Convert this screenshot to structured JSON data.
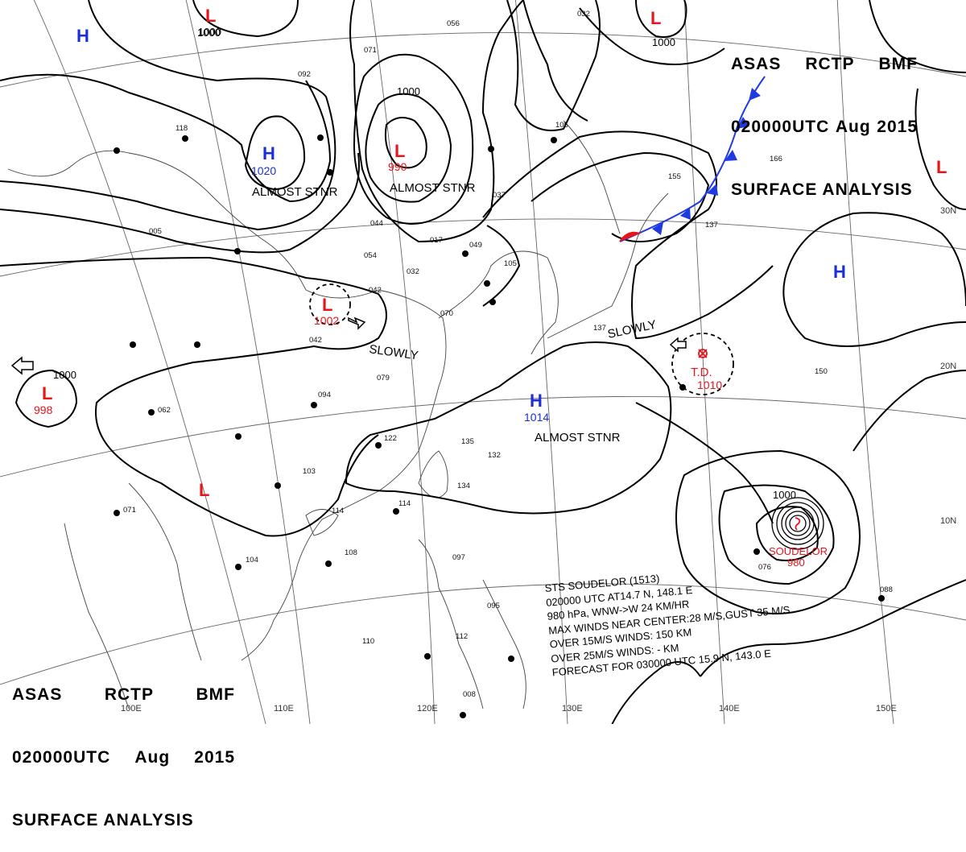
{
  "header_top": {
    "line1": [
      "ASAS",
      "RCTP",
      "BMF"
    ],
    "line2": [
      "020000UTC",
      "Aug",
      "2015"
    ],
    "line3": "SURFACE ANALYSIS"
  },
  "header_bottom": {
    "line1": [
      "ASAS",
      "RCTP",
      "BMF"
    ],
    "line2": [
      "020000UTC",
      "Aug",
      "2015"
    ],
    "line3": "SURFACE ANALYSIS"
  },
  "pressure_centers": [
    {
      "id": "low-top-left",
      "type": "L",
      "pressure": "1000"
    },
    {
      "id": "high-far-left",
      "type": "H",
      "pressure": ""
    },
    {
      "id": "high-mongolia",
      "type": "H",
      "pressure": "1020",
      "note": "ALMOST STNR"
    },
    {
      "id": "low-north",
      "type": "L",
      "pressure": "990",
      "note": "ALMOST STNR"
    },
    {
      "id": "low-top-right",
      "type": "L",
      "pressure": "1000"
    },
    {
      "id": "low-east-edge",
      "type": "L",
      "pressure": ""
    },
    {
      "id": "low-china",
      "type": "L",
      "pressure": "1002",
      "note": "SLOWLY"
    },
    {
      "id": "low-west",
      "type": "L",
      "pressure": "998"
    },
    {
      "id": "high-pacific",
      "type": "H",
      "pressure": ""
    },
    {
      "id": "low-south",
      "type": "L",
      "pressure": ""
    },
    {
      "id": "high-taiwan",
      "type": "H",
      "pressure": "1014",
      "note": "ALMOST STNR"
    },
    {
      "id": "td",
      "type": "T.D.",
      "pressure": "1010"
    },
    {
      "id": "soudelor",
      "type": "SOUDELOR",
      "pressure": "980"
    }
  ],
  "isobar_labels": [
    "1000",
    "1000",
    "1000",
    "1000",
    "1000"
  ],
  "motion_labels": [
    "SLOWLY",
    "SLOWLY"
  ],
  "lat_labels": [
    "30N",
    "20N",
    "10N"
  ],
  "lon_labels": [
    "100E",
    "110E",
    "120E",
    "130E",
    "140E",
    "150E"
  ],
  "station_numbers": [
    "056",
    "032",
    "071",
    "092",
    "118",
    "105",
    "037",
    "054",
    "042",
    "070",
    "095",
    "103",
    "094",
    "114",
    "110",
    "134",
    "132",
    "112",
    "062",
    "071",
    "122",
    "135",
    "137",
    "150",
    "155",
    "166",
    "137",
    "088",
    "076",
    "097",
    "108",
    "104",
    "005",
    "114",
    "008",
    "042",
    "049",
    "017",
    "044",
    "032",
    "079",
    "105"
  ],
  "storm_info": {
    "lines": [
      "STS SOUDELOR (1513)",
      "020000 UTC  AT14.7 N, 148.1 E",
      "980 hPa, WNW->W  24 KM/HR",
      "MAX WINDS NEAR CENTER:28 M/S,GUST 35 M/S",
      "OVER 15M/S WINDS: 150 KM",
      "OVER 25M/S WINDS: - KM",
      "FORECAST FOR 030000 UTC 15.9 N, 143.0 E"
    ]
  },
  "colors": {
    "high": "#1a2fd6",
    "low": "#e8141c",
    "line": "#000000",
    "grid": "#555555",
    "coast": "#333333",
    "front_cold": "#1f3ae0",
    "front_warm": "#e8141c"
  }
}
